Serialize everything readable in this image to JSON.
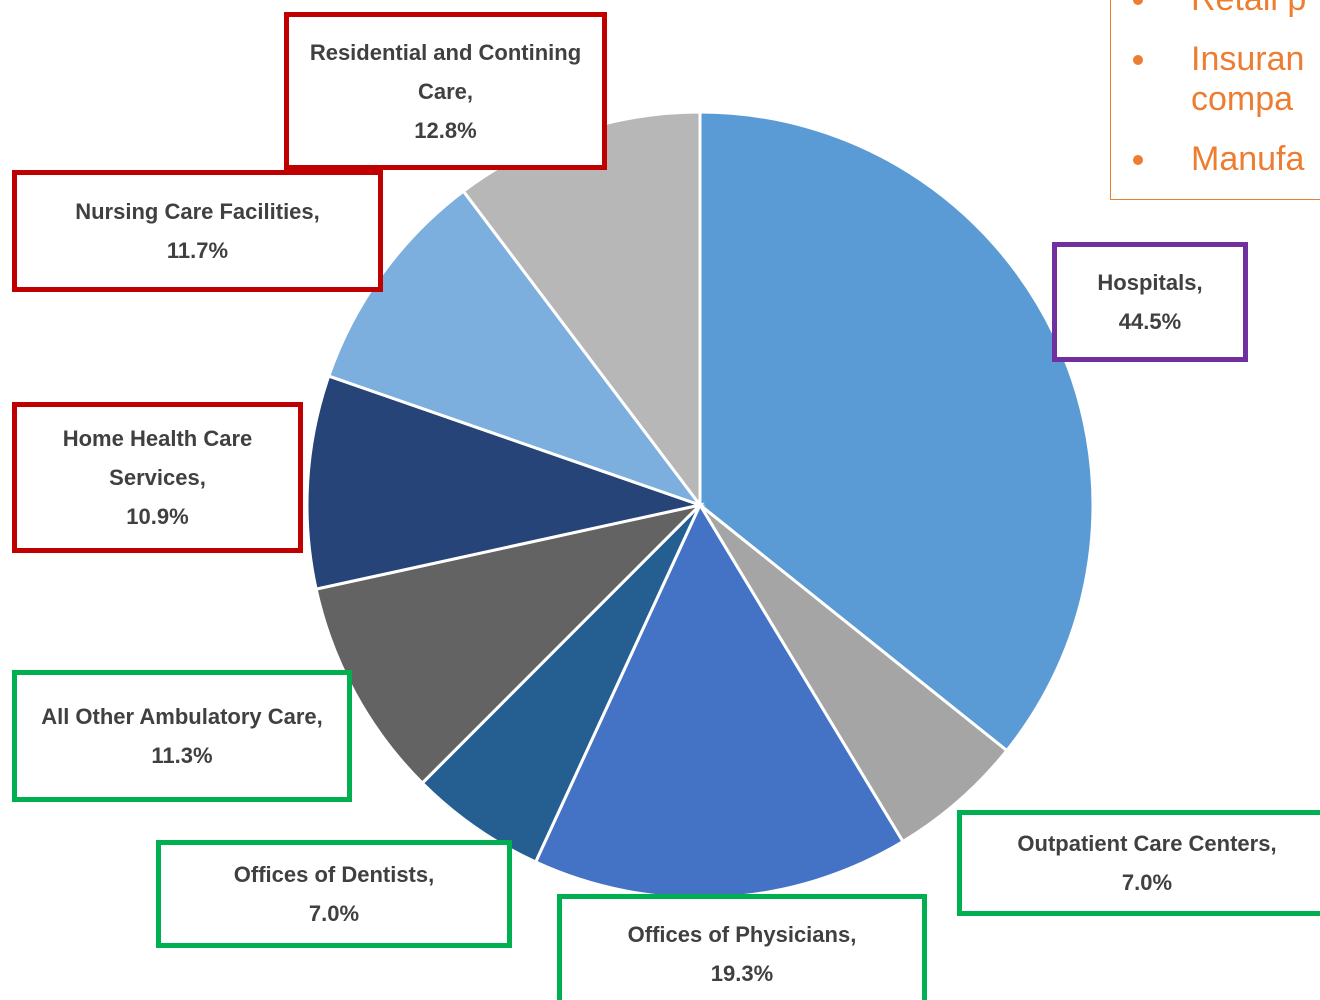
{
  "chart_data": {
    "type": "pie",
    "categories": [
      "Hospitals,",
      "Outpatient Care Centers,",
      "Offices of Physicians,",
      "Offices of Dentists,",
      "All Other Ambulatory Care,",
      "Home Health Care Services,",
      "Nursing Care Facilities,",
      "Residential and Contining Care,"
    ],
    "values": [
      44.5,
      7.0,
      19.3,
      7.0,
      11.3,
      10.9,
      11.7,
      12.8
    ],
    "value_labels": [
      "44.5%",
      "7.0%",
      "19.3%",
      "7.0%",
      "11.3%",
      "10.9%",
      "11.7%",
      "12.8%"
    ],
    "colors": [
      "#5b9bd5",
      "#a5a5a5",
      "#4472c4",
      "#255e91",
      "#636363",
      "#264478",
      "#7cafdd",
      "#b7b7b7"
    ],
    "label_border_colors": [
      "#7030a0",
      "#00b050",
      "#00b050",
      "#00b050",
      "#00b050",
      "#c00000",
      "#c00000",
      "#c00000"
    ]
  },
  "note_box": {
    "items": [
      [
        "Retail p"
      ],
      [
        "Insuran",
        "compa"
      ],
      [
        "Manufa"
      ]
    ],
    "color": "#ed7d31"
  }
}
